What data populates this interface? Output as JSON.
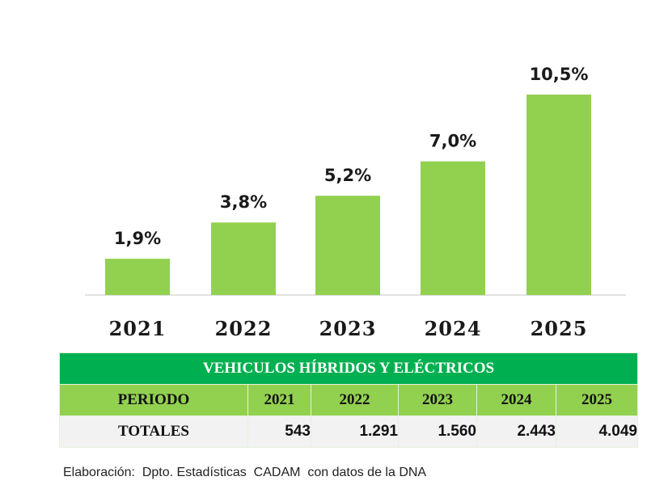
{
  "chart_data": {
    "type": "bar",
    "title": "",
    "xlabel": "",
    "ylabel": "",
    "categories": [
      "2021",
      "2022",
      "2023",
      "2024",
      "2025"
    ],
    "values": [
      1.9,
      3.8,
      5.2,
      7.0,
      10.5
    ],
    "value_labels": [
      "1,9%",
      "3,8%",
      "5,2%",
      "7,0%",
      "10,5%"
    ],
    "ylim": [
      0,
      10.5
    ],
    "grid": false,
    "bar_color": "#92d050",
    "axis_color": "#d9d9d9"
  },
  "table": {
    "title": "VEHICULOS HÍBRIDOS Y ELÉCTRICOS",
    "header_label": "PERIODO",
    "years": [
      "2021",
      "2022",
      "2023",
      "2024",
      "2025"
    ],
    "row_label": "TOTALES",
    "totals": [
      "543",
      "1.291",
      "1.560",
      "2.443",
      "4.049"
    ],
    "title_color": "#00b050",
    "header_color": "#92d050"
  },
  "source": "Elaboración:  Dpto. Estadísticas  CADAM  con datos de la DNA"
}
